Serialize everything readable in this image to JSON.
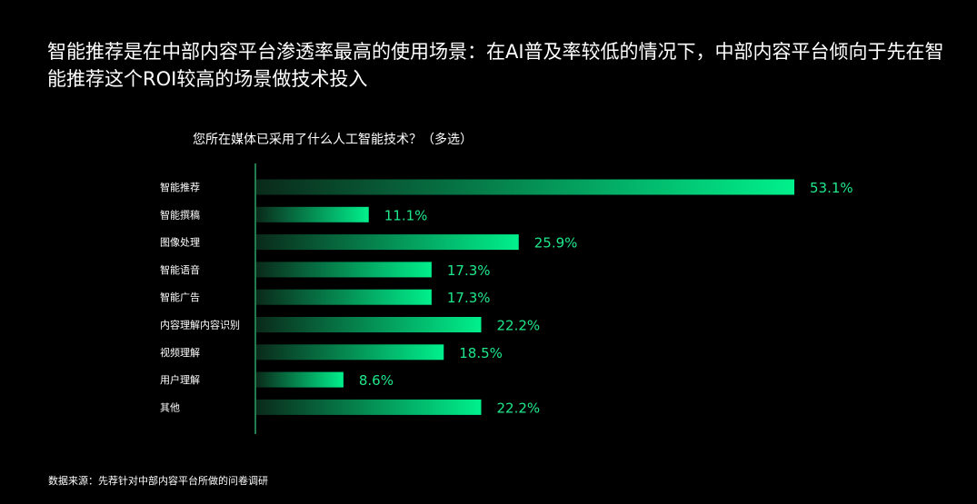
{
  "headline": "智能推荐是在中部内容平台渗透率最高的使用场景：在AI普及率较低的情况下，中部内容平台倾向于先在智能推荐这个ROI较高的场景做技术投入",
  "source": "数据来源：先荐针对中部内容平台所做的问卷调研",
  "colors": {
    "background": "#000000",
    "bar_start": "#0a2a1a",
    "bar_end": "#00f08c",
    "value_label": "#1ee88a",
    "axis_line": "#2fa56a",
    "text": "#ffffff"
  },
  "chart_data": {
    "type": "bar",
    "orientation": "horizontal",
    "title": "您所在媒体已采用了什么人工智能技术？（多选）",
    "categories": [
      "智能推荐",
      "智能撰稿",
      "图像处理",
      "智能语音",
      "智能广告",
      "内容理解内容识别",
      "视频理解",
      "用户理解",
      "其他"
    ],
    "values": [
      53.1,
      11.1,
      25.9,
      17.3,
      17.3,
      22.2,
      18.5,
      8.6,
      22.2
    ],
    "value_labels": [
      "53.1%",
      "11.1%",
      "25.9%",
      "17.3%",
      "17.3%",
      "22.2%",
      "18.5%",
      "8.6%",
      "22.2%"
    ],
    "unit": "%",
    "xlim": [
      0,
      53.1
    ],
    "grid": false,
    "legend": "none"
  }
}
